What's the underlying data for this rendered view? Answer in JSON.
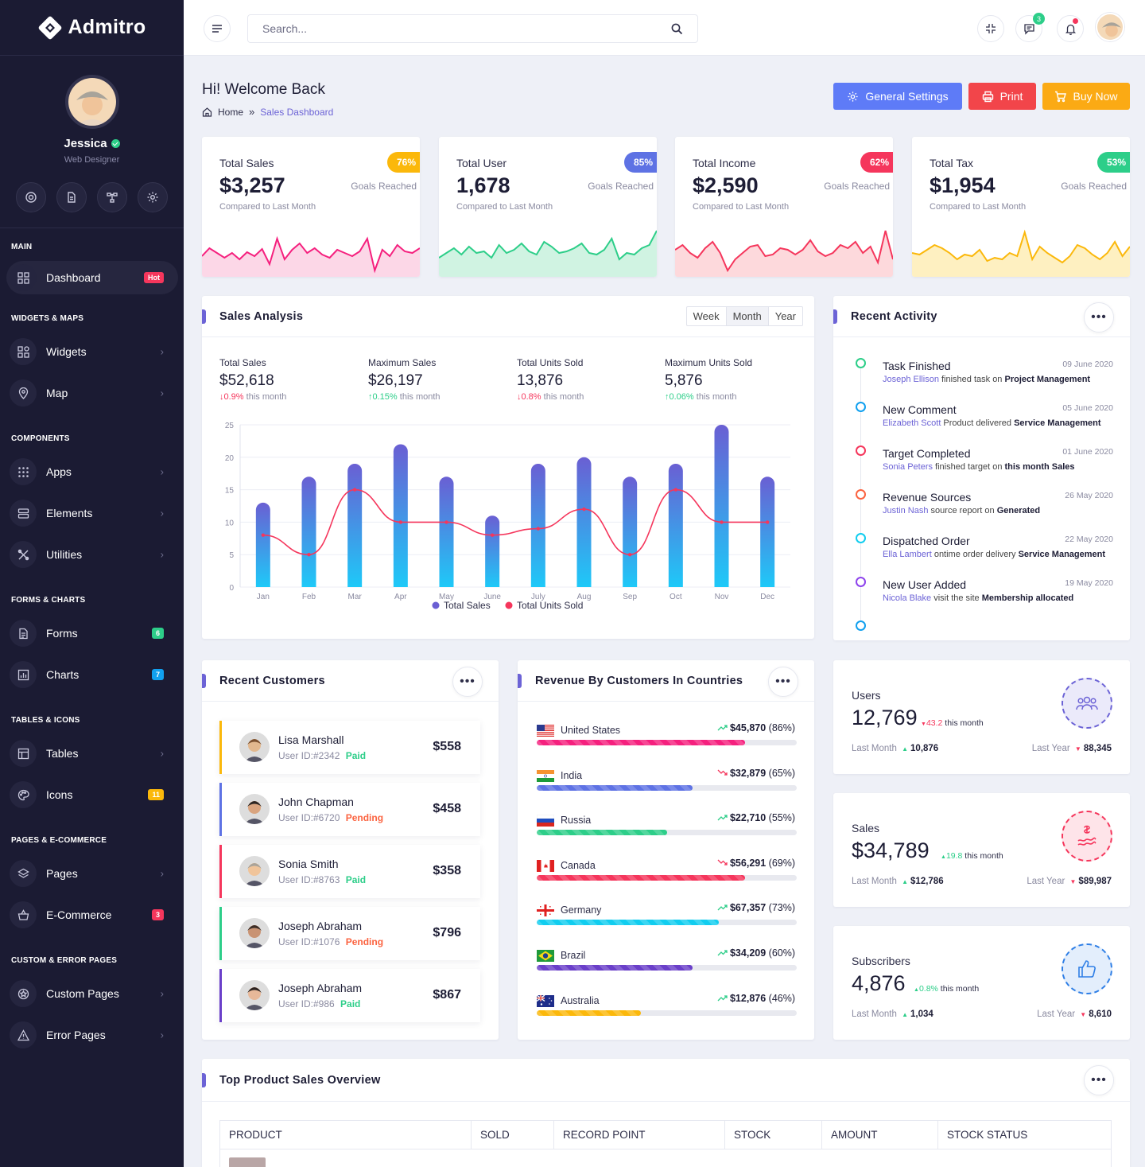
{
  "app": {
    "name": "Admitro"
  },
  "profile": {
    "name": "Jessica",
    "role": "Web Designer"
  },
  "menu": {
    "sections": [
      "MAIN",
      "WIDGETS & MAPS",
      "COMPONENTS",
      "FORMS & CHARTS",
      "TABLES & ICONS",
      "PAGES & E-COMMERCE",
      "CUSTOM & ERROR PAGES"
    ],
    "items": [
      {
        "label": "Dashboard",
        "badge": "Hot",
        "badge_color": "#f5365c",
        "active": true
      },
      {
        "label": "Widgets"
      },
      {
        "label": "Map"
      },
      {
        "label": "Apps"
      },
      {
        "label": "Elements"
      },
      {
        "label": "Utilities"
      },
      {
        "label": "Forms",
        "badge": "6",
        "badge_color": "#2dce89"
      },
      {
        "label": "Charts",
        "badge": "7",
        "badge_color": "#11cdef"
      },
      {
        "label": "Tables"
      },
      {
        "label": "Icons",
        "badge": "11",
        "badge_color": "#fbb80b"
      },
      {
        "label": "Pages"
      },
      {
        "label": "E-Commerce",
        "badge": "3",
        "badge_color": "#f5365c"
      },
      {
        "label": "Custom Pages"
      },
      {
        "label": "Error Pages"
      }
    ]
  },
  "topbar": {
    "search_placeholder": "Search...",
    "messages_count": "3"
  },
  "page": {
    "title": "Hi! Welcome Back",
    "breadcrumb": [
      "Home",
      "Sales Dashboard"
    ]
  },
  "actions": {
    "settings": "General Settings",
    "print": "Print",
    "buy": "Buy Now"
  },
  "stats": [
    {
      "title": "Total Sales",
      "value": "$3,257",
      "percent": "76%",
      "goal": "Goals Reached",
      "compare": "Compared to Last Month",
      "color": "#fbb80b"
    },
    {
      "title": "Total User",
      "value": "1,678",
      "percent": "85%",
      "goal": "Goals Reached",
      "compare": "Compared to Last Month",
      "color": "#5e72e4"
    },
    {
      "title": "Total Income",
      "value": "$2,590",
      "percent": "62%",
      "goal": "Goals Reached",
      "compare": "Compared to Last Month",
      "color": "#f5365c"
    },
    {
      "title": "Total Tax",
      "value": "$1,954",
      "percent": "53%",
      "goal": "Goals Reached",
      "compare": "Compared to Last Month",
      "color": "#2dce89"
    }
  ],
  "sales_analysis": {
    "title": "Sales Analysis",
    "periods": [
      "Week",
      "Month",
      "Year"
    ],
    "stats": [
      {
        "label": "Total Sales",
        "value": "$52,618",
        "change": "0.9%",
        "dir": "down",
        "suffix": "this month"
      },
      {
        "label": "Maximum Sales",
        "value": "$26,197",
        "change": "0.15%",
        "dir": "up",
        "suffix": "this month"
      },
      {
        "label": "Total Units Sold",
        "value": "13,876",
        "change": "0.8%",
        "dir": "down",
        "suffix": "this month"
      },
      {
        "label": "Maximum Units Sold",
        "value": "5,876",
        "change": "0.06%",
        "dir": "up",
        "suffix": "this month"
      }
    ]
  },
  "chart_data": {
    "type": "bar",
    "categories": [
      "Jan",
      "Feb",
      "Mar",
      "Apr",
      "May",
      "June",
      "July",
      "Aug",
      "Sep",
      "Oct",
      "Nov",
      "Dec"
    ],
    "series": [
      {
        "name": "Total Sales",
        "type": "bar",
        "values": [
          13,
          17,
          19,
          22,
          17,
          11,
          19,
          20,
          17,
          19,
          25,
          17
        ]
      },
      {
        "name": "Total Units Sold",
        "type": "line",
        "values": [
          8,
          5,
          15,
          10,
          10,
          8,
          9,
          12,
          5,
          15,
          10,
          10
        ]
      }
    ],
    "yticks": [
      "0",
      "5",
      "10",
      "15",
      "20",
      "25"
    ],
    "ylim": [
      0,
      25
    ],
    "legend": "bottom",
    "colors": {
      "bar_top": "#6a5fd3",
      "bar_bottom": "#1ec9f8",
      "line": "#f5365c"
    }
  },
  "activity": {
    "title": "Recent Activity",
    "items": [
      {
        "title": "Task Finished",
        "date": "09 June 2020",
        "name": "Joseph Ellison",
        "text": " finished task on ",
        "target": "Project Management",
        "color": "#2dce89"
      },
      {
        "title": "New Comment",
        "date": "05 June 2020",
        "name": "Elizabeth Scott",
        "text": " Product delivered ",
        "target": "Service Management",
        "color": "#11a0ef"
      },
      {
        "title": "Target Completed",
        "date": "01 June 2020",
        "name": "Sonia Peters",
        "text": " finished target on ",
        "target": "this month Sales",
        "color": "#f5365c"
      },
      {
        "title": "Revenue Sources",
        "date": "26 May 2020",
        "name": "Justin Nash",
        "text": " source report on ",
        "target": "Generated",
        "color": "#fb6340"
      },
      {
        "title": "Dispatched Order",
        "date": "22 May 2020",
        "name": "Ella Lambert",
        "text": " ontime order delivery ",
        "target": "Service Management",
        "color": "#11cdef"
      },
      {
        "title": "New User Added",
        "date": "19 May 2020",
        "name": "Nicola Blake",
        "text": " visit the site ",
        "target": "Membership allocated",
        "color": "#8e44ec"
      }
    ]
  },
  "customers": {
    "title": "Recent Customers",
    "items": [
      {
        "name": "Lisa Marshall",
        "id": "User ID:#2342",
        "status": "Paid",
        "amount": "$558",
        "color": "#fbb80b"
      },
      {
        "name": "John Chapman",
        "id": "User ID:#6720",
        "status": "Pending",
        "amount": "$458",
        "color": "#5e72e4"
      },
      {
        "name": "Sonia Smith",
        "id": "User ID:#8763",
        "status": "Paid",
        "amount": "$358",
        "color": "#f5365c"
      },
      {
        "name": "Joseph Abraham",
        "id": "User ID:#1076",
        "status": "Pending",
        "amount": "$796",
        "color": "#2dce89"
      },
      {
        "name": "Joseph Abraham",
        "id": "User ID:#986",
        "status": "Paid",
        "amount": "$867",
        "color": "#6a3fc9"
      }
    ]
  },
  "countries": {
    "title": "Revenue By Customers In Countries",
    "items": [
      {
        "name": "United States",
        "value": "$45,870",
        "pct": "(86%)",
        "fill": 0.8,
        "trend": "up",
        "color": "#f5207e"
      },
      {
        "name": "India",
        "value": "$32,879",
        "pct": "(65%)",
        "fill": 0.6,
        "trend": "down",
        "color": "#5e72e4"
      },
      {
        "name": "Russia",
        "value": "$22,710",
        "pct": "(55%)",
        "fill": 0.5,
        "trend": "up",
        "color": "#2dce89"
      },
      {
        "name": "Canada",
        "value": "$56,291",
        "pct": "(69%)",
        "fill": 0.8,
        "trend": "down",
        "color": "#f5365c"
      },
      {
        "name": "Germany",
        "value": "$67,357",
        "pct": "(73%)",
        "fill": 0.7,
        "trend": "up",
        "color": "#11cdef"
      },
      {
        "name": "Brazil",
        "value": "$34,209",
        "pct": "(60%)",
        "fill": 0.6,
        "trend": "up",
        "color": "#6a3fc9"
      },
      {
        "name": "Australia",
        "value": "$12,876",
        "pct": "(46%)",
        "fill": 0.4,
        "trend": "up",
        "color": "#fbb80b"
      }
    ]
  },
  "mini_stats": [
    {
      "label": "Users",
      "value": "12,769",
      "change": "43.2",
      "change_dir": "down",
      "suffix": "this month",
      "last_month_label": "Last Month",
      "last_month": "10,876",
      "last_year_label": "Last Year",
      "last_year": "88,345",
      "color": "#6c63d6",
      "icon": "users-icon"
    },
    {
      "label": "Sales",
      "value": "$34,789",
      "change": "19.8",
      "change_dir": "up",
      "suffix": "this month",
      "last_month_label": "Last Month",
      "last_month": "$12,786",
      "last_year_label": "Last Year",
      "last_year": "$89,987",
      "color": "#f5365c",
      "icon": "sales-icon"
    },
    {
      "label": "Subscribers",
      "value": "4,876",
      "change": "0.8%",
      "change_dir": "up",
      "suffix": "this month",
      "last_month_label": "Last Month",
      "last_month": "1,034",
      "last_year_label": "Last Year",
      "last_year": "8,610",
      "color": "#2f7fe6",
      "icon": "thumbs-up-icon"
    }
  ],
  "products": {
    "title": "Top Product Sales Overview",
    "columns": [
      "PRODUCT",
      "SOLD",
      "RECORD POINT",
      "STOCK",
      "AMOUNT",
      "STOCK STATUS"
    ]
  }
}
